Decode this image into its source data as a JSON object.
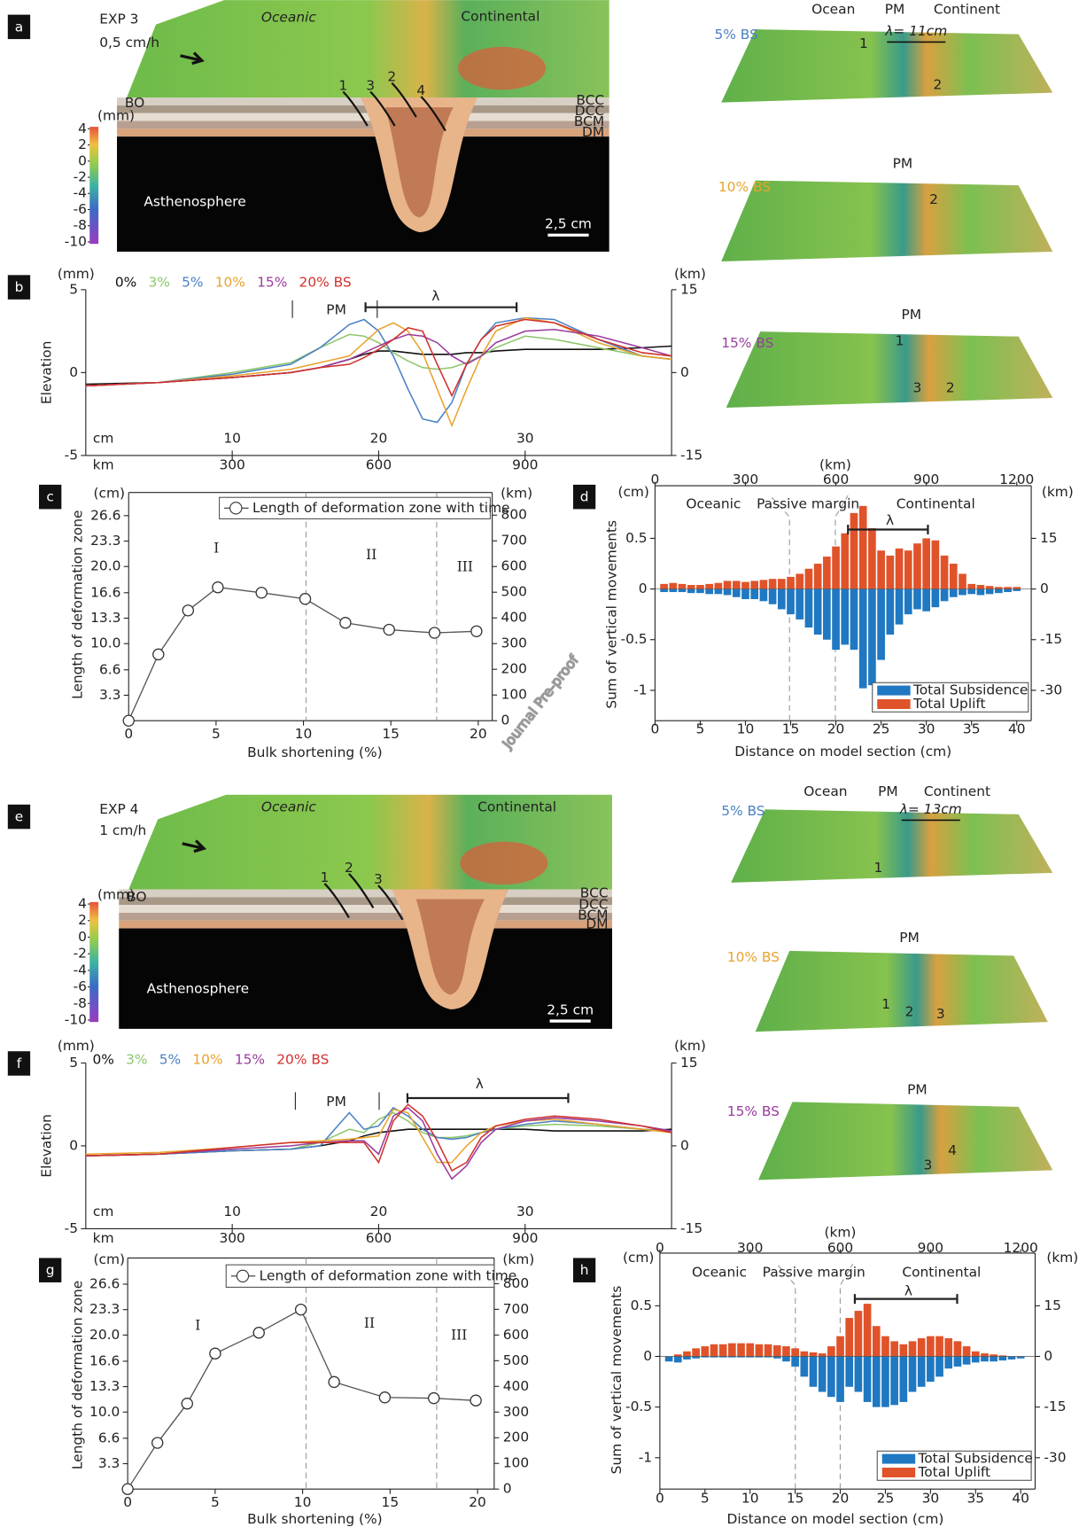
{
  "figure": {
    "panel_labels": [
      "a",
      "b",
      "c",
      "d",
      "e",
      "f",
      "g",
      "h"
    ],
    "watermark": "Journal Pre-proof",
    "models": [
      {
        "title": "EXP 3",
        "rate": "0,5 cm/h",
        "top_left": "Oceanic",
        "top_right": "Continental",
        "layers": [
          "BO",
          "BCC",
          "DCC",
          "BCM",
          "DM"
        ],
        "colorbar_unit": "(mm)",
        "colorbar_ticks": [
          4,
          2,
          0,
          -2,
          -4,
          -6,
          -8,
          -10
        ],
        "mantle": "Asthenosphere",
        "scale": "2,5 cm",
        "faults": [
          "1",
          "3",
          "2",
          "4"
        ]
      },
      {
        "title": "EXP 4",
        "rate": "1 cm/h",
        "top_left": "Oceanic",
        "top_right": "Continental",
        "layers": [
          "BO",
          "BCC",
          "DCC",
          "BCM",
          "DM"
        ],
        "colorbar_unit": "(mm)",
        "colorbar_ticks": [
          4,
          2,
          0,
          -2,
          -4,
          -6,
          -8,
          -10
        ],
        "mantle": "Asthenosphere",
        "scale": "2,5 cm",
        "faults": [
          "1",
          "2",
          "3"
        ]
      }
    ],
    "snapshots": [
      {
        "label": "5% BS",
        "color": "#4a80c4",
        "top": [
          "Ocean",
          "PM",
          "Continent"
        ],
        "lambda": "λ= 11cm",
        "numbers": [
          "1",
          "2"
        ]
      },
      {
        "label": "10% BS",
        "color": "#e8a32e",
        "top": [
          "PM"
        ],
        "numbers": [
          "2"
        ]
      },
      {
        "label": "15% BS",
        "color": "#9a3c9e",
        "top": [
          "PM"
        ],
        "numbers": [
          "1",
          "3",
          "2"
        ]
      },
      {
        "label": "5% BS",
        "color": "#4a80c4",
        "top": [
          "Ocean",
          "PM",
          "Continent"
        ],
        "lambda": "λ= 13cm",
        "numbers": [
          "1"
        ]
      },
      {
        "label": "10% BS",
        "color": "#e8a32e",
        "top": [
          "PM"
        ],
        "numbers": [
          "1",
          "2",
          "3"
        ]
      },
      {
        "label": "15% BS",
        "color": "#9a3c9e",
        "top": [
          "PM"
        ],
        "numbers": [
          "3",
          "4"
        ]
      }
    ]
  },
  "chart_data": [
    {
      "type": "line",
      "ylabel": "Elevation",
      "y_unit": "(mm)",
      "y2_unit": "(km)",
      "x_unit": "cm",
      "x2_unit": "km",
      "annotations": [
        "PM",
        "λ"
      ],
      "x": [
        0,
        5,
        10,
        14,
        16,
        18,
        19,
        20,
        21,
        22,
        23,
        24,
        25,
        26,
        27,
        28,
        30,
        32,
        35,
        38,
        40
      ],
      "series": [
        {
          "name": "0%",
          "color": "#111111",
          "values": [
            -0.7,
            -0.6,
            -0.3,
            0,
            0.3,
            0.8,
            1.1,
            1.3,
            1.3,
            1.2,
            1.1,
            1.1,
            1.1,
            1.2,
            1.2,
            1.3,
            1.4,
            1.4,
            1.4,
            1.5,
            1.6
          ]
        },
        {
          "name": "3%",
          "color": "#8cc66a",
          "values": [
            -0.8,
            -0.6,
            0,
            0.6,
            1.5,
            2.3,
            2.2,
            1.8,
            1.2,
            0.7,
            0.3,
            0.2,
            0.3,
            0.6,
            1,
            1.5,
            2.2,
            2,
            1.5,
            1,
            0.8
          ]
        },
        {
          "name": "5%",
          "color": "#4a80c4",
          "values": [
            -0.8,
            -0.6,
            -0.1,
            0.5,
            1.5,
            2.9,
            3.2,
            2.5,
            1,
            -1,
            -2.8,
            -3,
            -1.8,
            0.5,
            2,
            3,
            3.3,
            3.2,
            2,
            1,
            0.8
          ]
        },
        {
          "name": "10%",
          "color": "#e8a32e",
          "values": [
            -0.8,
            -0.6,
            -0.2,
            0.2,
            0.6,
            1,
            1.8,
            2.6,
            3,
            2.5,
            1.2,
            -1,
            -3.2,
            -1,
            1,
            2.5,
            3.3,
            3,
            1.8,
            1,
            0.8
          ]
        },
        {
          "name": "15%",
          "color": "#9a3c9e",
          "values": [
            -0.8,
            -0.6,
            -0.3,
            0,
            0.3,
            0.8,
            1.2,
            1.6,
            2,
            2.3,
            2.2,
            1.8,
            1,
            0.5,
            1,
            1.8,
            2.5,
            2.6,
            2.2,
            1.5,
            1
          ]
        },
        {
          "name": "20% BS",
          "color": "#d0312d",
          "values": [
            -0.8,
            -0.6,
            -0.3,
            0,
            0.3,
            0.5,
            0.9,
            1.4,
            2,
            2.7,
            2.5,
            0.5,
            -1.4,
            0.5,
            2,
            2.8,
            3.2,
            3,
            2,
            1.2,
            1
          ]
        }
      ],
      "xlim": [
        0,
        40
      ],
      "xticks": [
        10,
        20,
        30
      ],
      "x2lim": [
        0,
        1200
      ],
      "x2ticks": [
        300,
        600,
        900
      ],
      "ylim": [
        -5,
        5
      ],
      "yticks": [
        -5,
        0,
        5
      ],
      "y2lim": [
        -15,
        15
      ],
      "y2ticks": [
        -15,
        0,
        15
      ]
    },
    {
      "type": "line",
      "marker": "circle",
      "ylabel": "Length of deformation zone",
      "xlabel": "Bulk shortening (%)",
      "y_unit": "(cm)",
      "y2_unit": "(km)",
      "annotations": [
        "I",
        "II",
        "III"
      ],
      "x": [
        0,
        1.7,
        3.4,
        5.1,
        7.6,
        10.1,
        12.4,
        14.9,
        17.5,
        19.9
      ],
      "series": [
        {
          "name": "Length of deformation zone with time",
          "color": "#555555",
          "values": [
            0,
            8.6,
            14.3,
            17.3,
            16.6,
            15.8,
            12.7,
            11.8,
            11.4,
            11.6
          ]
        }
      ],
      "xlim": [
        0,
        20.8
      ],
      "xticks": [
        0,
        5,
        10,
        15,
        20
      ],
      "ylim": [
        0,
        29.6
      ],
      "yticks": [
        3.3,
        6.6,
        {
          "value": 10,
          "label": "10.0"
        },
        13.3,
        16.6,
        {
          "value": 20,
          "label": "20.0"
        },
        23.3,
        26.6
      ],
      "y2lim": [
        0,
        888
      ],
      "y2ticks": [
        0,
        100,
        200,
        300,
        400,
        500,
        600,
        700,
        800
      ]
    },
    {
      "type": "bar",
      "ylabel": "Sum of vertical movements",
      "xlabel": "Distance on model section (cm)",
      "y_unit": "(cm)",
      "y2_unit": "(km)",
      "x2_unit": "(km)",
      "annotations": [
        "Oceanic",
        "Passive margin",
        "Continental",
        "λ"
      ],
      "x": [
        1,
        2,
        3,
        4,
        5,
        6,
        7,
        8,
        9,
        10,
        11,
        12,
        13,
        14,
        15,
        16,
        17,
        18,
        19,
        20,
        21,
        22,
        23,
        24,
        25,
        26,
        27,
        28,
        29,
        30,
        31,
        32,
        33,
        34,
        35,
        36,
        37,
        38,
        39,
        40
      ],
      "series": [
        {
          "name": "Total Subsidence",
          "color": "#1f78c1",
          "values": [
            -0.03,
            -0.03,
            -0.03,
            -0.04,
            -0.04,
            -0.05,
            -0.05,
            -0.06,
            -0.08,
            -0.1,
            -0.1,
            -0.12,
            -0.15,
            -0.2,
            -0.25,
            -0.3,
            -0.38,
            -0.45,
            -0.5,
            -0.6,
            -0.55,
            -0.6,
            -0.98,
            -0.95,
            -0.7,
            -0.45,
            -0.35,
            -0.25,
            -0.2,
            -0.22,
            -0.18,
            -0.12,
            -0.08,
            -0.06,
            -0.05,
            -0.06,
            -0.05,
            -0.04,
            -0.03,
            -0.02
          ]
        },
        {
          "name": "Total Uplift",
          "color": "#e0532a",
          "values": [
            0.05,
            0.06,
            0.05,
            0.04,
            0.04,
            0.05,
            0.06,
            0.08,
            0.08,
            0.07,
            0.08,
            0.09,
            0.1,
            0.1,
            0.12,
            0.15,
            0.2,
            0.25,
            0.32,
            0.42,
            0.55,
            0.75,
            0.82,
            0.6,
            0.38,
            0.33,
            0.4,
            0.38,
            0.45,
            0.5,
            0.48,
            0.33,
            0.25,
            0.15,
            0.05,
            0.04,
            0.03,
            0.02,
            0.02,
            0.02
          ]
        }
      ],
      "xlim": [
        0,
        41.6
      ],
      "xticks": [
        0,
        5,
        10,
        15,
        20,
        25,
        30,
        35,
        40
      ],
      "x2lim": [
        0,
        1248
      ],
      "x2ticks": [
        0,
        300,
        600,
        900,
        1200
      ],
      "ylim": [
        -1.3,
        1.02
      ],
      "yticks": [
        -1,
        -0.5,
        0,
        0.5
      ],
      "y2lim": [
        -39,
        30.6
      ],
      "y2ticks": [
        -30,
        -15,
        0,
        15
      ]
    },
    {
      "type": "line",
      "ylabel": "Elevation",
      "y_unit": "(mm)",
      "y2_unit": "(km)",
      "x_unit": "cm",
      "x2_unit": "km",
      "annotations": [
        "PM",
        "λ"
      ],
      "x": [
        0,
        5,
        10,
        14,
        16,
        18,
        19,
        20,
        21,
        22,
        23,
        24,
        25,
        26,
        27,
        28,
        30,
        32,
        35,
        38,
        40
      ],
      "series": [
        {
          "name": "0%",
          "color": "#111111",
          "values": [
            -0.6,
            -0.5,
            -0.3,
            -0.2,
            0,
            0.3,
            0.6,
            0.8,
            0.9,
            1,
            1,
            1,
            1,
            1,
            1,
            1,
            1,
            0.9,
            0.9,
            0.9,
            1
          ]
        },
        {
          "name": "3%",
          "color": "#8cc66a",
          "values": [
            -0.6,
            -0.5,
            -0.3,
            -0.2,
            0.2,
            1,
            0.8,
            1.6,
            2,
            1.5,
            0.8,
            0.5,
            0.5,
            0.6,
            0.8,
            1,
            1.2,
            1.3,
            1.2,
            1,
            0.9
          ]
        },
        {
          "name": "5%",
          "color": "#4a80c4",
          "values": [
            -0.6,
            -0.5,
            -0.3,
            -0.2,
            0,
            2,
            1,
            1.2,
            2.3,
            1.8,
            1,
            0.5,
            0.4,
            0.5,
            0.8,
            1,
            1.3,
            1.5,
            1.3,
            1,
            0.9
          ]
        },
        {
          "name": "10%",
          "color": "#e8a32e",
          "values": [
            -0.5,
            -0.4,
            -0.1,
            0.2,
            0.3,
            0.4,
            0.5,
            0.6,
            2.2,
            2,
            0.5,
            -1,
            -1,
            0,
            0.8,
            1.2,
            1.5,
            1.6,
            1.3,
            1,
            0.8
          ]
        },
        {
          "name": "15%",
          "color": "#9a3c9e",
          "values": [
            -0.6,
            -0.5,
            -0.2,
            0,
            0.2,
            0.3,
            0.3,
            -0.5,
            1.8,
            2.3,
            1.5,
            -0.5,
            -2,
            -1.2,
            0.2,
            1,
            1.5,
            1.7,
            1.5,
            1.2,
            0.9
          ]
        },
        {
          "name": "20% BS",
          "color": "#d0312d",
          "values": [
            -0.6,
            -0.5,
            -0.1,
            0.2,
            0.2,
            0.2,
            0.2,
            -1,
            1.5,
            2.5,
            1.8,
            0.3,
            -1.5,
            -1,
            0.5,
            1.2,
            1.6,
            1.8,
            1.6,
            1.2,
            0.8
          ]
        }
      ],
      "xlim": [
        0,
        40
      ],
      "xticks": [
        10,
        20,
        30
      ],
      "x2lim": [
        0,
        1200
      ],
      "x2ticks": [
        300,
        600,
        900
      ],
      "ylim": [
        -5,
        5
      ],
      "yticks": [
        -5,
        0,
        5
      ],
      "y2lim": [
        -15,
        15
      ],
      "y2ticks": [
        -15,
        0,
        15
      ]
    },
    {
      "type": "line",
      "marker": "circle",
      "ylabel": "Length of deformation zone",
      "xlabel": "Bulk shortening (%)",
      "y_unit": "(cm)",
      "y2_unit": "(km)",
      "annotations": [
        "I",
        "II",
        "III"
      ],
      "x": [
        0,
        1.7,
        3.4,
        5,
        7.5,
        9.9,
        11.8,
        14.7,
        17.5,
        19.9
      ],
      "series": [
        {
          "name": "Length of deformation zone with time",
          "color": "#555555",
          "values": [
            0,
            6,
            11.1,
            17.6,
            20.3,
            23.3,
            13.9,
            11.9,
            11.8,
            11.5
          ]
        }
      ],
      "xlim": [
        0,
        20.95
      ],
      "xticks": [
        0,
        5,
        10,
        15,
        20
      ],
      "ylim": [
        0,
        30
      ],
      "yticks": [
        3.3,
        6.6,
        {
          "value": 10,
          "label": "10.0"
        },
        13.3,
        16.6,
        {
          "value": 20,
          "label": "20.0"
        },
        23.3,
        26.6
      ],
      "y2lim": [
        0,
        900
      ],
      "y2ticks": [
        0,
        100,
        200,
        300,
        400,
        500,
        600,
        700,
        800
      ]
    },
    {
      "type": "bar",
      "ylabel": "Sum of vertical movements",
      "xlabel": "Distance on model section (cm)",
      "y_unit": "(cm)",
      "y2_unit": "(km)",
      "x2_unit": "(km)",
      "annotations": [
        "Oceanic",
        "Passive margin",
        "Continental",
        "λ"
      ],
      "x": [
        1,
        2,
        3,
        4,
        5,
        6,
        7,
        8,
        9,
        10,
        11,
        12,
        13,
        14,
        15,
        16,
        17,
        18,
        19,
        20,
        21,
        22,
        23,
        24,
        25,
        26,
        27,
        28,
        29,
        30,
        31,
        32,
        33,
        34,
        35,
        36,
        37,
        38,
        39,
        40
      ],
      "series": [
        {
          "name": "Total Subsidence",
          "color": "#1f78c1",
          "values": [
            -0.05,
            -0.06,
            -0.03,
            -0.02,
            -0.01,
            -0.01,
            -0.01,
            -0.01,
            -0.01,
            -0.01,
            -0.01,
            -0.01,
            -0.02,
            -0.05,
            -0.1,
            -0.2,
            -0.3,
            -0.35,
            -0.4,
            -0.45,
            -0.3,
            -0.35,
            -0.45,
            -0.5,
            -0.5,
            -0.48,
            -0.45,
            -0.35,
            -0.3,
            -0.25,
            -0.2,
            -0.12,
            -0.1,
            -0.08,
            -0.06,
            -0.05,
            -0.05,
            -0.04,
            -0.03,
            -0.02
          ]
        },
        {
          "name": "Total Uplift",
          "color": "#e0532a",
          "values": [
            0,
            0.02,
            0.05,
            0.08,
            0.1,
            0.12,
            0.12,
            0.13,
            0.13,
            0.13,
            0.12,
            0.12,
            0.11,
            0.1,
            0.08,
            0.05,
            0.04,
            0.03,
            0.1,
            0.2,
            0.38,
            0.45,
            0.52,
            0.3,
            0.2,
            0.15,
            0.12,
            0.15,
            0.18,
            0.2,
            0.2,
            0.18,
            0.15,
            0.1,
            0.05,
            0.03,
            0.02,
            0.01,
            0,
            0
          ]
        }
      ],
      "xlim": [
        0,
        41.6
      ],
      "xticks": [
        0,
        5,
        10,
        15,
        20,
        25,
        30,
        35,
        40
      ],
      "x2lim": [
        0,
        1248
      ],
      "x2ticks": [
        0,
        300,
        600,
        900,
        1200
      ],
      "ylim": [
        -1.31,
        1.02
      ],
      "yticks": [
        -1,
        -0.5,
        0,
        0.5
      ],
      "y2lim": [
        -39.3,
        30.6
      ],
      "y2ticks": [
        -30,
        -15,
        0,
        15
      ]
    }
  ]
}
